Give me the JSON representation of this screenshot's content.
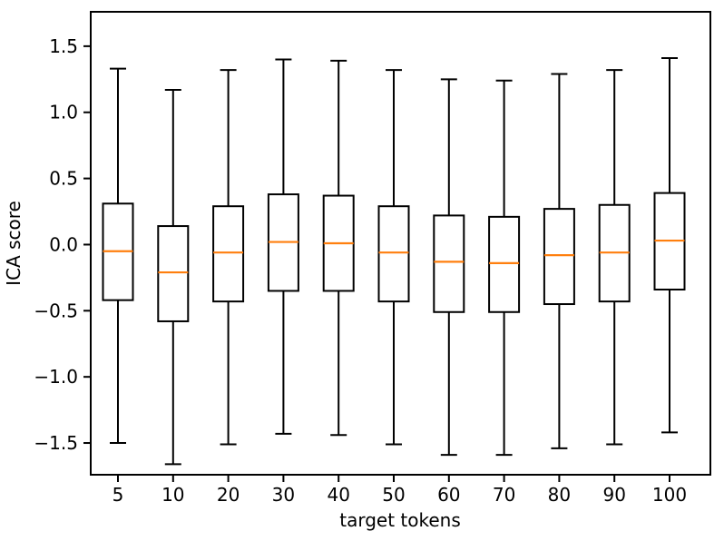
{
  "figure": {
    "background": "#ffffff"
  },
  "chart_data": {
    "type": "boxplot",
    "title": "",
    "xlabel": "target tokens",
    "ylabel": "ICA score",
    "categories": [
      "5",
      "10",
      "20",
      "30",
      "40",
      "50",
      "60",
      "70",
      "80",
      "90",
      "100"
    ],
    "ytick_values": [
      1.5,
      1.0,
      0.5,
      0.0,
      -0.5,
      -1.0,
      -1.5
    ],
    "ytick_labels": [
      "1.5",
      "1.0",
      "0.5",
      "0.0",
      "−0.5",
      "−1.0",
      "−1.5"
    ],
    "ylim": [
      -1.74,
      1.76
    ],
    "grid": false,
    "legend_position": "none",
    "colors": {
      "box": "#000000",
      "whisker": "#000000",
      "cap": "#000000",
      "median": "#ff7f0e",
      "spine": "#000000",
      "text": "#000000",
      "background": "#ffffff"
    },
    "boxes": [
      {
        "category": "5",
        "whisker_low": -1.5,
        "q1": -0.42,
        "median": -0.05,
        "q3": 0.31,
        "whisker_high": 1.33
      },
      {
        "category": "10",
        "whisker_low": -1.66,
        "q1": -0.58,
        "median": -0.21,
        "q3": 0.14,
        "whisker_high": 1.17
      },
      {
        "category": "20",
        "whisker_low": -1.51,
        "q1": -0.43,
        "median": -0.06,
        "q3": 0.29,
        "whisker_high": 1.32
      },
      {
        "category": "30",
        "whisker_low": -1.43,
        "q1": -0.35,
        "median": 0.02,
        "q3": 0.38,
        "whisker_high": 1.4
      },
      {
        "category": "40",
        "whisker_low": -1.44,
        "q1": -0.35,
        "median": 0.01,
        "q3": 0.37,
        "whisker_high": 1.39
      },
      {
        "category": "50",
        "whisker_low": -1.51,
        "q1": -0.43,
        "median": -0.06,
        "q3": 0.29,
        "whisker_high": 1.32
      },
      {
        "category": "60",
        "whisker_low": -1.59,
        "q1": -0.51,
        "median": -0.13,
        "q3": 0.22,
        "whisker_high": 1.25
      },
      {
        "category": "70",
        "whisker_low": -1.59,
        "q1": -0.51,
        "median": -0.14,
        "q3": 0.21,
        "whisker_high": 1.24
      },
      {
        "category": "80",
        "whisker_low": -1.54,
        "q1": -0.45,
        "median": -0.08,
        "q3": 0.27,
        "whisker_high": 1.29
      },
      {
        "category": "90",
        "whisker_low": -1.51,
        "q1": -0.43,
        "median": -0.06,
        "q3": 0.3,
        "whisker_high": 1.32
      },
      {
        "category": "100",
        "whisker_low": -1.42,
        "q1": -0.34,
        "median": 0.03,
        "q3": 0.39,
        "whisker_high": 1.41
      }
    ]
  }
}
